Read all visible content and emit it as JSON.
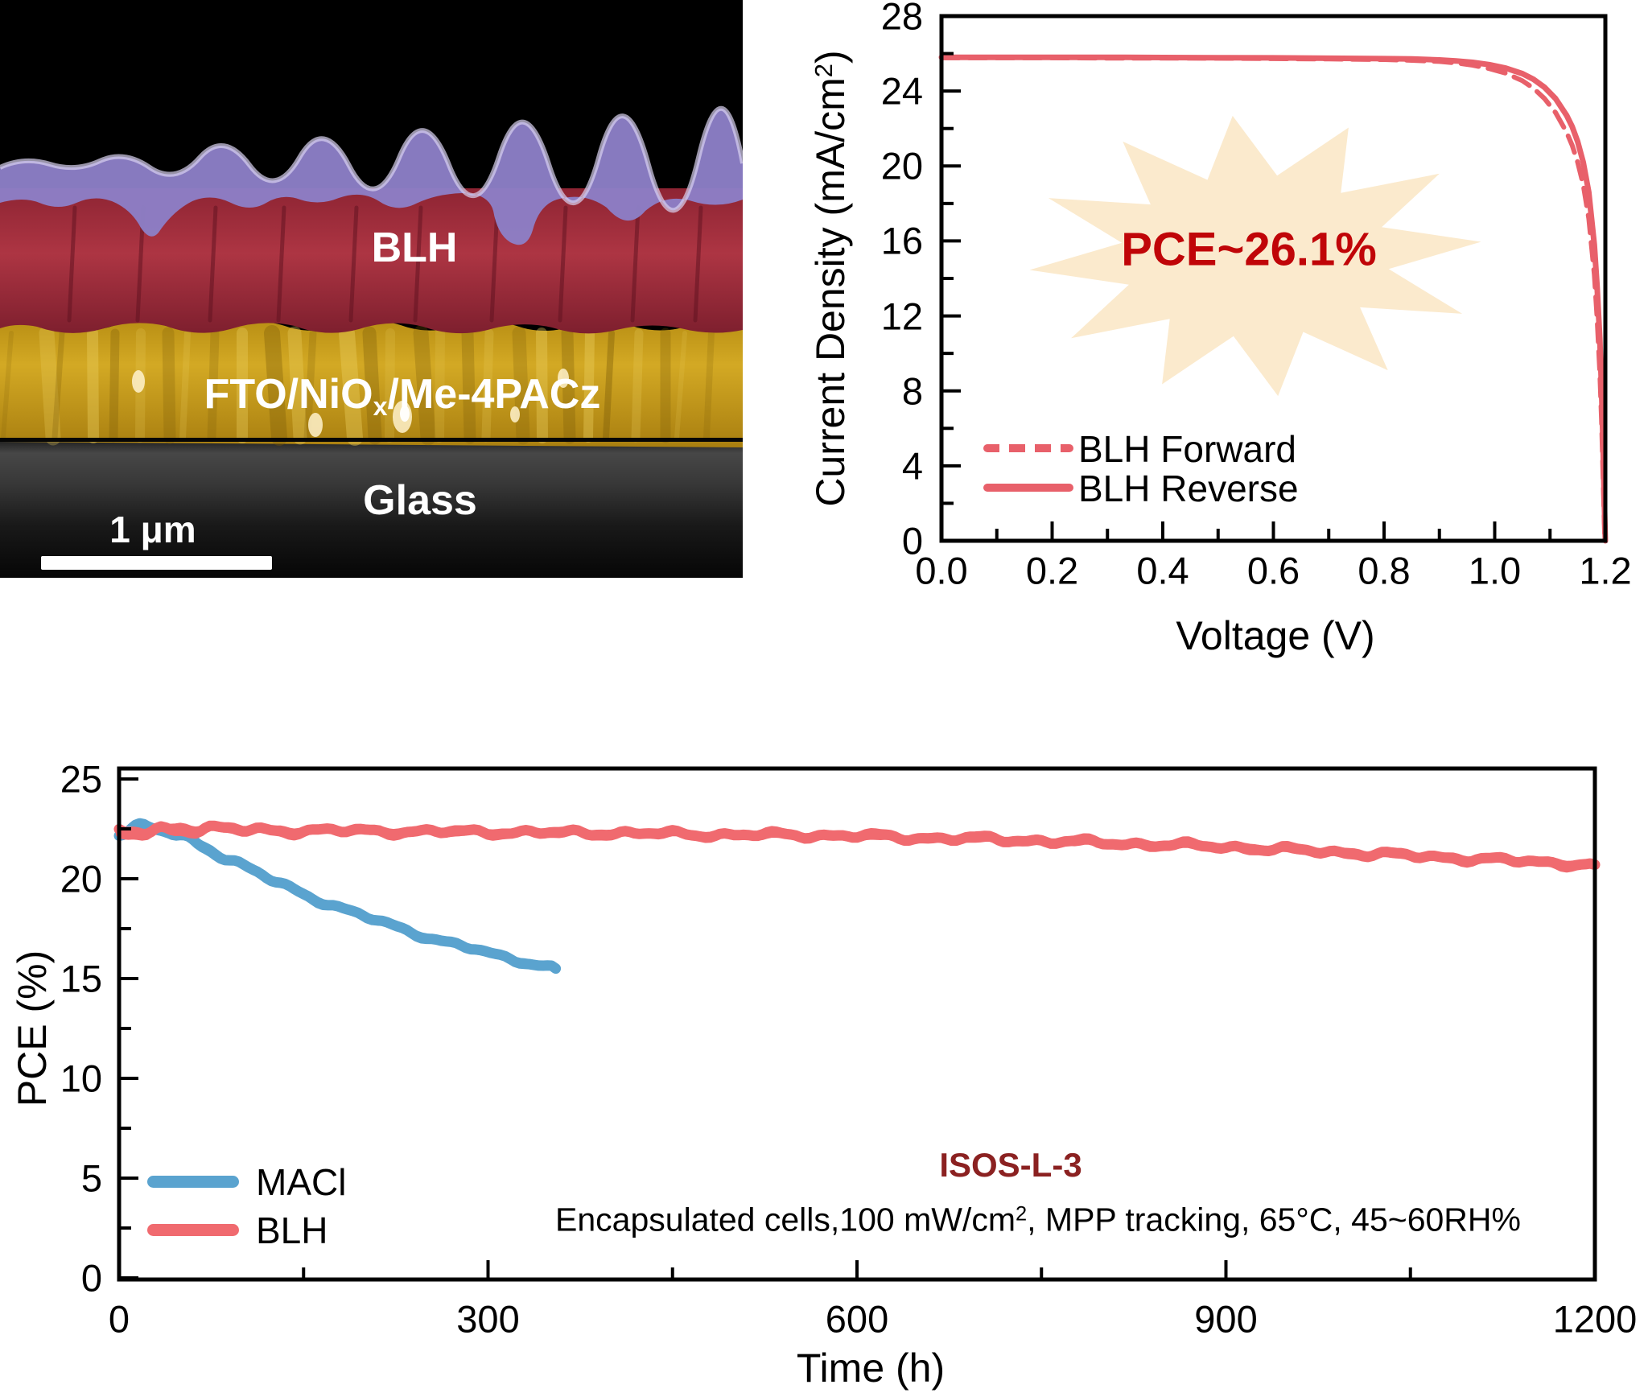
{
  "sem_panel": {
    "label_blh": "BLH",
    "stack_prefix": "FTO/NiO",
    "stack_sub": "x",
    "stack_suffix": "/Me-4PACz",
    "label_glass": "Glass",
    "scalebar_label": "1 μm",
    "colors": {
      "background": "#000000",
      "top_layer_purple": "#8d7fc7",
      "absorber_red": "#a42e3c",
      "electrode_yellow": "#c89c1e",
      "glass_gray": "#2e2e2e"
    }
  },
  "chart_data": [
    {
      "id": "jv_curve",
      "type": "line",
      "x_title": "Voltage (V)",
      "y_title_prefix": "Current Density (mA/cm",
      "y_title_sup": "2",
      "y_title_suffix": ")",
      "xlim": [
        0,
        1.2
      ],
      "ylim": [
        0,
        28
      ],
      "x_ticks": [
        0,
        0.2,
        0.4,
        0.6,
        0.8,
        1.0,
        1.2
      ],
      "x_tick_labels": [
        "0.0",
        "0.2",
        "0.4",
        "0.6",
        "0.8",
        "1.0",
        "1.2"
      ],
      "x_minor_ticks": [
        0.1,
        0.3,
        0.5,
        0.7,
        0.9,
        1.1
      ],
      "y_ticks": [
        0,
        4,
        8,
        12,
        16,
        20,
        24,
        28
      ],
      "y_tick_labels": [
        "0",
        "4",
        "8",
        "12",
        "16",
        "20",
        "24",
        "28"
      ],
      "y_minor_ticks": [
        2,
        6,
        10,
        14,
        18,
        22,
        26
      ],
      "grid": false,
      "legend_position": "lower-left",
      "annotation": {
        "text": "PCE~26.1%",
        "color": "#c00508",
        "star_color": "#fbeacd"
      },
      "series": [
        {
          "name": "BLH Forward",
          "color": "#e8606a",
          "dash": true,
          "points": [
            [
              0,
              25.77
            ],
            [
              0.1,
              25.77
            ],
            [
              0.2,
              25.77
            ],
            [
              0.3,
              25.76
            ],
            [
              0.4,
              25.76
            ],
            [
              0.5,
              25.75
            ],
            [
              0.6,
              25.73
            ],
            [
              0.7,
              25.71
            ],
            [
              0.8,
              25.68
            ],
            [
              0.85,
              25.64
            ],
            [
              0.9,
              25.58
            ],
            [
              0.93,
              25.5
            ],
            [
              0.96,
              25.38
            ],
            [
              0.99,
              25.2
            ],
            [
              1.02,
              24.95
            ],
            [
              1.05,
              24.55
            ],
            [
              1.07,
              24.15
            ],
            [
              1.09,
              23.6
            ],
            [
              1.11,
              22.85
            ],
            [
              1.13,
              21.8
            ],
            [
              1.14,
              21.1
            ],
            [
              1.15,
              20.2
            ],
            [
              1.16,
              19.0
            ],
            [
              1.17,
              17.2
            ],
            [
              1.18,
              14.2
            ],
            [
              1.185,
              11.9
            ],
            [
              1.19,
              9.0
            ],
            [
              1.193,
              6.5
            ],
            [
              1.196,
              3.2
            ],
            [
              1.198,
              1.0
            ],
            [
              1.199,
              0
            ]
          ]
        },
        {
          "name": "BLH Reverse",
          "color": "#e8606a",
          "dash": false,
          "points": [
            [
              0,
              25.8
            ],
            [
              0.1,
              25.8
            ],
            [
              0.2,
              25.8
            ],
            [
              0.3,
              25.8
            ],
            [
              0.4,
              25.79
            ],
            [
              0.5,
              25.78
            ],
            [
              0.6,
              25.77
            ],
            [
              0.7,
              25.75
            ],
            [
              0.8,
              25.73
            ],
            [
              0.85,
              25.71
            ],
            [
              0.9,
              25.66
            ],
            [
              0.93,
              25.61
            ],
            [
              0.96,
              25.53
            ],
            [
              0.99,
              25.41
            ],
            [
              1.02,
              25.22
            ],
            [
              1.05,
              24.93
            ],
            [
              1.07,
              24.63
            ],
            [
              1.09,
              24.2
            ],
            [
              1.11,
              23.6
            ],
            [
              1.13,
              22.7
            ],
            [
              1.14,
              22.1
            ],
            [
              1.15,
              21.3
            ],
            [
              1.16,
              20.2
            ],
            [
              1.17,
              18.6
            ],
            [
              1.18,
              15.8
            ],
            [
              1.185,
              13.6
            ],
            [
              1.19,
              10.8
            ],
            [
              1.193,
              8.2
            ],
            [
              1.196,
              4.8
            ],
            [
              1.198,
              2.2
            ],
            [
              1.2,
              0
            ]
          ]
        }
      ]
    },
    {
      "id": "stability",
      "type": "line",
      "x_title": "Time (h)",
      "y_title": "PCE (%)",
      "xlim": [
        0,
        1200
      ],
      "ylim": [
        0,
        25
      ],
      "x_ticks": [
        0,
        300,
        600,
        900,
        1200
      ],
      "x_tick_labels": [
        "0",
        "300",
        "600",
        "900",
        "1200"
      ],
      "x_minor_ticks": [
        150,
        450,
        750,
        1050
      ],
      "y_ticks": [
        0,
        5,
        10,
        15,
        20,
        25
      ],
      "y_tick_labels": [
        "0",
        "5",
        "10",
        "15",
        "20",
        "25"
      ],
      "y_minor_ticks": [
        2.5,
        7.5,
        12.5,
        17.5,
        22.5
      ],
      "grid": false,
      "legend_position": "lower-left",
      "annotations": {
        "isos": "ISOS-L-3",
        "isos_color": "#8b2121",
        "conditions_prefix": "Encapsulated cells,100 mW/cm",
        "conditions_sup": "2",
        "conditions_suffix": ", MPP tracking, 65°C, 45~60RH%"
      },
      "series": [
        {
          "name": "MACl",
          "color": "#5aa3cf",
          "dash": false,
          "points": [
            [
              0,
              22.4
            ],
            [
              10,
              22.45
            ],
            [
              20,
              22.5
            ],
            [
              30,
              22.45
            ],
            [
              40,
              22.35
            ],
            [
              50,
              22.15
            ],
            [
              60,
              21.9
            ],
            [
              75,
              21.45
            ],
            [
              90,
              20.95
            ],
            [
              105,
              20.5
            ],
            [
              120,
              20.05
            ],
            [
              135,
              19.65
            ],
            [
              150,
              19.25
            ],
            [
              170,
              18.75
            ],
            [
              190,
              18.3
            ],
            [
              210,
              17.9
            ],
            [
              230,
              17.5
            ],
            [
              250,
              17.1
            ],
            [
              270,
              16.75
            ],
            [
              290,
              16.45
            ],
            [
              310,
              16.1
            ],
            [
              330,
              15.85
            ],
            [
              345,
              15.65
            ],
            [
              355,
              15.5
            ]
          ]
        },
        {
          "name": "BLH",
          "color": "#f06a6f",
          "dash": false,
          "points": [
            [
              0,
              22.2
            ],
            [
              15,
              22.3
            ],
            [
              30,
              22.4
            ],
            [
              50,
              22.55
            ],
            [
              70,
              22.5
            ],
            [
              100,
              22.45
            ],
            [
              150,
              22.4
            ],
            [
              200,
              22.4
            ],
            [
              250,
              22.35
            ],
            [
              300,
              22.35
            ],
            [
              350,
              22.3
            ],
            [
              400,
              22.3
            ],
            [
              450,
              22.25
            ],
            [
              500,
              22.2
            ],
            [
              550,
              22.2
            ],
            [
              600,
              22.15
            ],
            [
              650,
              22.05
            ],
            [
              700,
              22.0
            ],
            [
              750,
              21.9
            ],
            [
              800,
              21.8
            ],
            [
              850,
              21.7
            ],
            [
              900,
              21.6
            ],
            [
              950,
              21.45
            ],
            [
              1000,
              21.3
            ],
            [
              1050,
              21.15
            ],
            [
              1100,
              21.0
            ],
            [
              1150,
              20.85
            ],
            [
              1200,
              20.7
            ]
          ]
        }
      ]
    }
  ]
}
